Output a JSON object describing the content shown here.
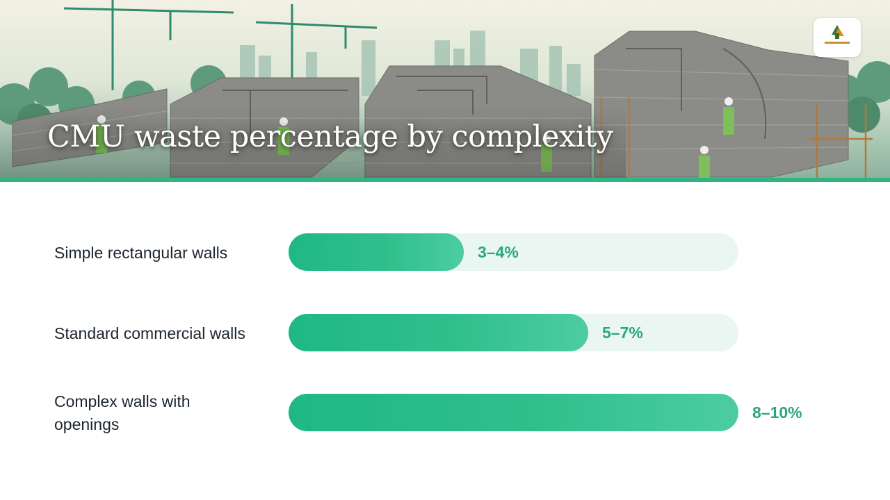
{
  "slide": {
    "title": "CMU waste percentage by complexity",
    "banner_image": "construction-site-cmu-walls-illustration",
    "logo_icon": "company-logo-icon",
    "accent_color": "#2fb583"
  },
  "chart_data": {
    "type": "bar",
    "orientation": "horizontal",
    "categories": [
      "Simple rectangular walls",
      "Standard commercial walls",
      "Complex walls with openings"
    ],
    "value_labels": [
      "3–4%",
      "5–7%",
      "8–10%"
    ],
    "ranges": [
      [
        3,
        4
      ],
      [
        5,
        7
      ],
      [
        8,
        10
      ]
    ],
    "values": [
      3.5,
      6,
      9
    ],
    "xlim": [
      0,
      9
    ],
    "bar_color": "#1fb885",
    "track_color": "#eaf6f1",
    "grid": false,
    "title": "",
    "xlabel": "",
    "ylabel": ""
  }
}
